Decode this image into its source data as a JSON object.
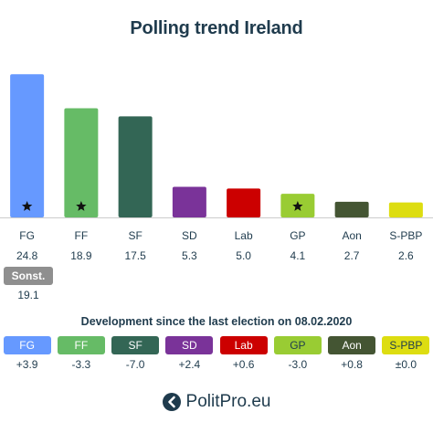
{
  "title": "Polling trend Ireland",
  "chart_data": {
    "type": "bar",
    "title": "Polling trend Ireland",
    "categories": [
      "FG",
      "FF",
      "SF",
      "SD",
      "Lab",
      "GP",
      "Aon",
      "S-PBP"
    ],
    "values": [
      24.8,
      18.9,
      17.5,
      5.3,
      5.0,
      4.1,
      2.7,
      2.6
    ],
    "value_labels": [
      "24.8",
      "18.9",
      "17.5",
      "5.3",
      "5.0",
      "4.1",
      "2.7",
      "2.6"
    ],
    "colors": [
      "#6699ff",
      "#66bb66",
      "#336655",
      "#7a3399",
      "#cc0000",
      "#99cc33",
      "#445533",
      "#dddd11"
    ],
    "government_marker": [
      true,
      true,
      false,
      false,
      false,
      true,
      false,
      false
    ],
    "ylim": [
      0,
      25
    ],
    "grid": false,
    "other": {
      "label": "Sonst.",
      "value": "19.1",
      "color": "#8f8f8f"
    }
  },
  "development": {
    "title": "Development since the last election on 08.02.2020",
    "labels": [
      "FG",
      "FF",
      "SF",
      "SD",
      "Lab",
      "GP",
      "Aon",
      "S-PBP"
    ],
    "deltas": [
      "+3.9",
      "-3.3",
      "-7.0",
      "+2.4",
      "+0.6",
      "-3.0",
      "+0.8",
      "±0.0"
    ]
  },
  "brand": {
    "name": "PolitPro.eu",
    "icon": "politpro-logo-icon"
  }
}
